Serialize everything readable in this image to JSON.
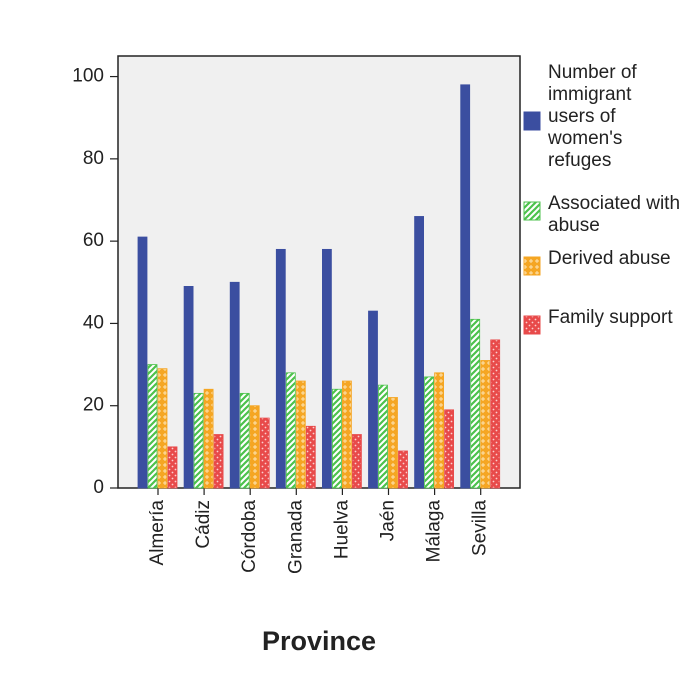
{
  "chart_data": {
    "type": "bar",
    "x_label": "Province",
    "categories": [
      "Almería",
      "Cádiz",
      "Córdoba",
      "Granada",
      "Huelva",
      "Jaén",
      "Málaga",
      "Sevilla"
    ],
    "series": [
      {
        "name": "Number of immigrant users of women's refuges",
        "color": "#3b4ea0",
        "pattern": "solid",
        "values": [
          61,
          49,
          50,
          58,
          58,
          43,
          66,
          98
        ]
      },
      {
        "name": "Associated with abuse",
        "color": "#4cc24c",
        "pattern": "hatch",
        "values": [
          30,
          23,
          23,
          28,
          24,
          25,
          27,
          41
        ]
      },
      {
        "name": "Derived abuse",
        "color": "#f5a623",
        "pattern": "plus",
        "values": [
          29,
          24,
          20,
          26,
          26,
          22,
          28,
          31
        ]
      },
      {
        "name": "Family support",
        "color": "#e84a4a",
        "pattern": "dots",
        "values": [
          10,
          13,
          17,
          15,
          13,
          9,
          19,
          36
        ]
      }
    ],
    "ylim": [
      0,
      105
    ],
    "yticks": [
      0,
      20,
      40,
      60,
      80,
      100
    ],
    "grid": false
  }
}
